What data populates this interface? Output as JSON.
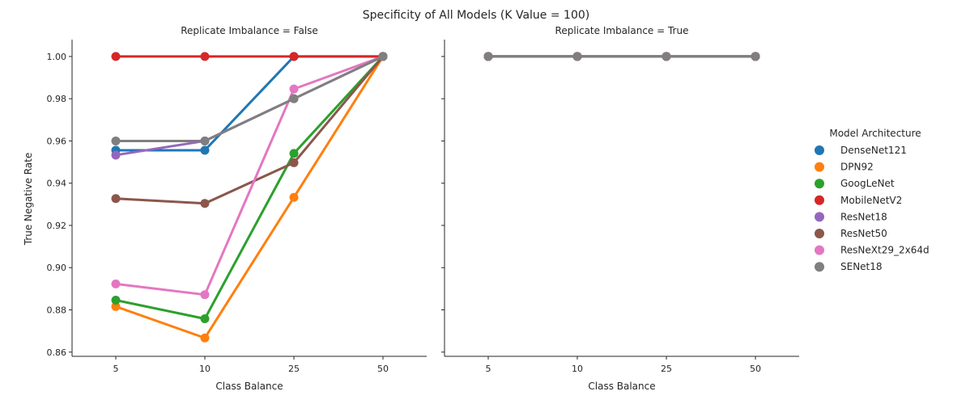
{
  "chart_data": {
    "type": "line",
    "title": "Specificity of All Models (K Value = 100)",
    "ylabel": "True Negative Rate",
    "xlabel": "Class Balance",
    "categories": [
      "5",
      "10",
      "25",
      "50"
    ],
    "ylim": [
      0.858,
      1.008
    ],
    "yticks": [
      "0.86",
      "0.88",
      "0.90",
      "0.92",
      "0.94",
      "0.96",
      "0.98",
      "1.00"
    ],
    "legend_title": "Model Architecture",
    "legend_position": "right",
    "grid": false,
    "panels": [
      {
        "title": "Replicate Imbalance = False",
        "series": [
          {
            "name": "DenseNet121",
            "color": "#1f77b4",
            "values": [
              0.9556,
              0.9556,
              1.0,
              1.0
            ]
          },
          {
            "name": "DPN92",
            "color": "#ff7f0e",
            "values": [
              0.8816,
              0.8667,
              0.9333,
              1.0
            ]
          },
          {
            "name": "GoogLeNet",
            "color": "#2ca02c",
            "values": [
              0.8846,
              0.8758,
              0.9541,
              1.0
            ]
          },
          {
            "name": "MobileNetV2",
            "color": "#d62728",
            "values": [
              1.0,
              1.0,
              1.0,
              1.0
            ]
          },
          {
            "name": "ResNet18",
            "color": "#9467bd",
            "values": [
              0.9533,
              0.96,
              0.98,
              1.0
            ]
          },
          {
            "name": "ResNet50",
            "color": "#8c564b",
            "values": [
              0.9327,
              0.9304,
              0.9497,
              1.0
            ]
          },
          {
            "name": "ResNeXt29_2x64d",
            "color": "#e377c2",
            "values": [
              0.8923,
              0.8872,
              0.9846,
              1.0
            ]
          },
          {
            "name": "SENet18",
            "color": "#7f7f7f",
            "values": [
              0.96,
              0.96,
              0.98,
              1.0
            ]
          }
        ]
      },
      {
        "title": "Replicate Imbalance = True",
        "series": [
          {
            "name": "DenseNet121",
            "color": "#1f77b4",
            "values": [
              1.0,
              1.0,
              1.0,
              1.0
            ]
          },
          {
            "name": "DPN92",
            "color": "#ff7f0e",
            "values": [
              1.0,
              1.0,
              1.0,
              1.0
            ]
          },
          {
            "name": "GoogLeNet",
            "color": "#2ca02c",
            "values": [
              1.0,
              1.0,
              1.0,
              1.0
            ]
          },
          {
            "name": "MobileNetV2",
            "color": "#d62728",
            "values": [
              1.0,
              1.0,
              1.0,
              1.0
            ]
          },
          {
            "name": "ResNet18",
            "color": "#9467bd",
            "values": [
              1.0,
              1.0,
              1.0,
              1.0
            ]
          },
          {
            "name": "ResNet50",
            "color": "#8c564b",
            "values": [
              1.0,
              1.0,
              1.0,
              1.0
            ]
          },
          {
            "name": "ResNeXt29_2x64d",
            "color": "#e377c2",
            "values": [
              1.0,
              1.0,
              1.0,
              1.0
            ]
          },
          {
            "name": "SENet18",
            "color": "#7f7f7f",
            "values": [
              1.0,
              1.0,
              1.0,
              1.0
            ]
          }
        ]
      }
    ]
  }
}
